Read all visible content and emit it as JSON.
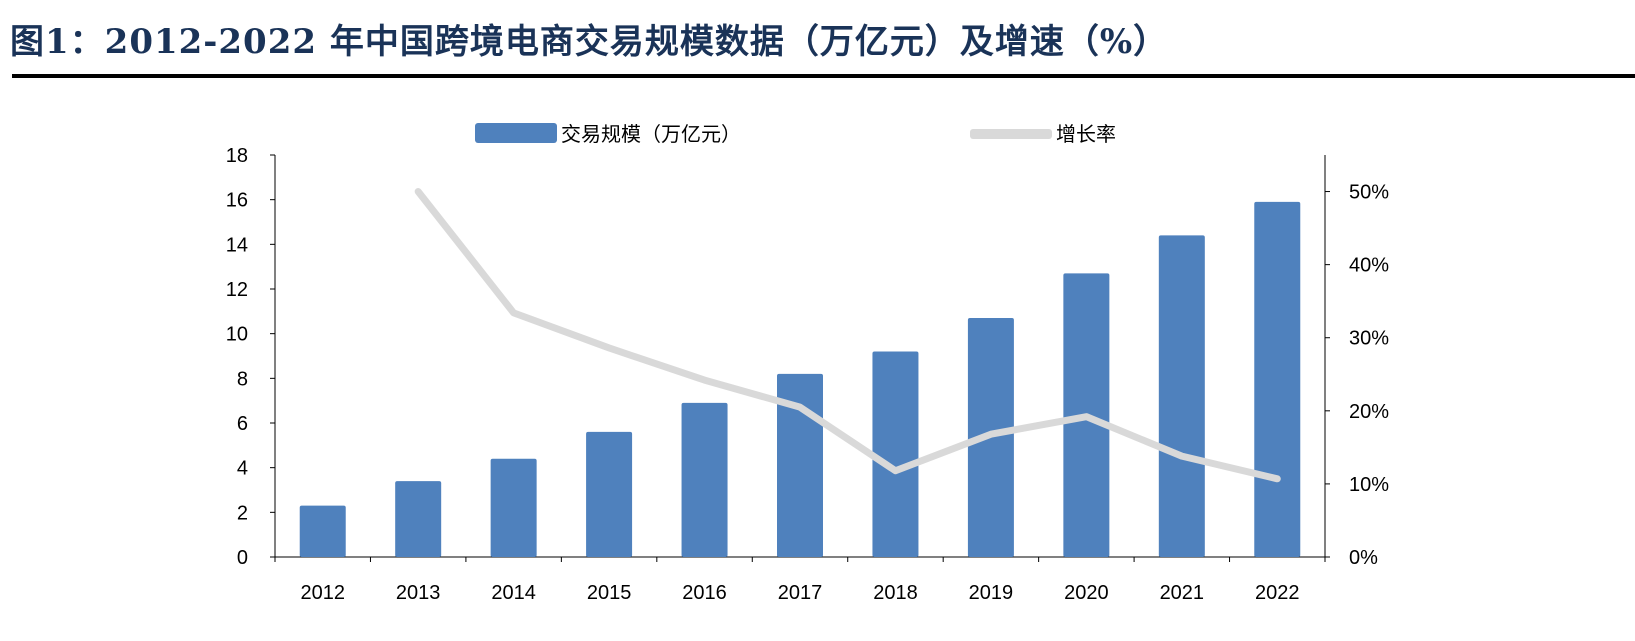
{
  "title": "图1：2012-2022 年中国跨境电商交易规模数据（万亿元）及增速（%）",
  "chart_data": {
    "type": "bar+line",
    "title": "图1：2012-2022 年中国跨境电商交易规模数据（万亿元）及增速（%）",
    "categories": [
      "2012",
      "2013",
      "2014",
      "2015",
      "2016",
      "2017",
      "2018",
      "2019",
      "2020",
      "2021",
      "2022"
    ],
    "series": [
      {
        "name": "交易规模（万亿元）",
        "type": "bar",
        "axis": "left",
        "color": "#4f81bd",
        "values": [
          2.3,
          3.4,
          4.4,
          5.6,
          6.9,
          8.2,
          9.2,
          10.7,
          12.7,
          14.4,
          15.9
        ]
      },
      {
        "name": "增长率",
        "type": "line",
        "axis": "right",
        "color": "#d9d9d9",
        "values": [
          null,
          50.0,
          33.4,
          28.6,
          24.2,
          20.5,
          11.8,
          16.8,
          19.2,
          13.8,
          10.7
        ]
      }
    ],
    "left_axis": {
      "ylim": [
        0,
        18
      ],
      "ticks": [
        "0",
        "2",
        "4",
        "6",
        "8",
        "10",
        "12",
        "14",
        "16",
        "18"
      ]
    },
    "right_axis": {
      "ylim": [
        0,
        55
      ],
      "ticks": [
        "0%",
        "10%",
        "20%",
        "30%",
        "40%",
        "50%"
      ]
    },
    "legend": "top",
    "grid": false
  }
}
